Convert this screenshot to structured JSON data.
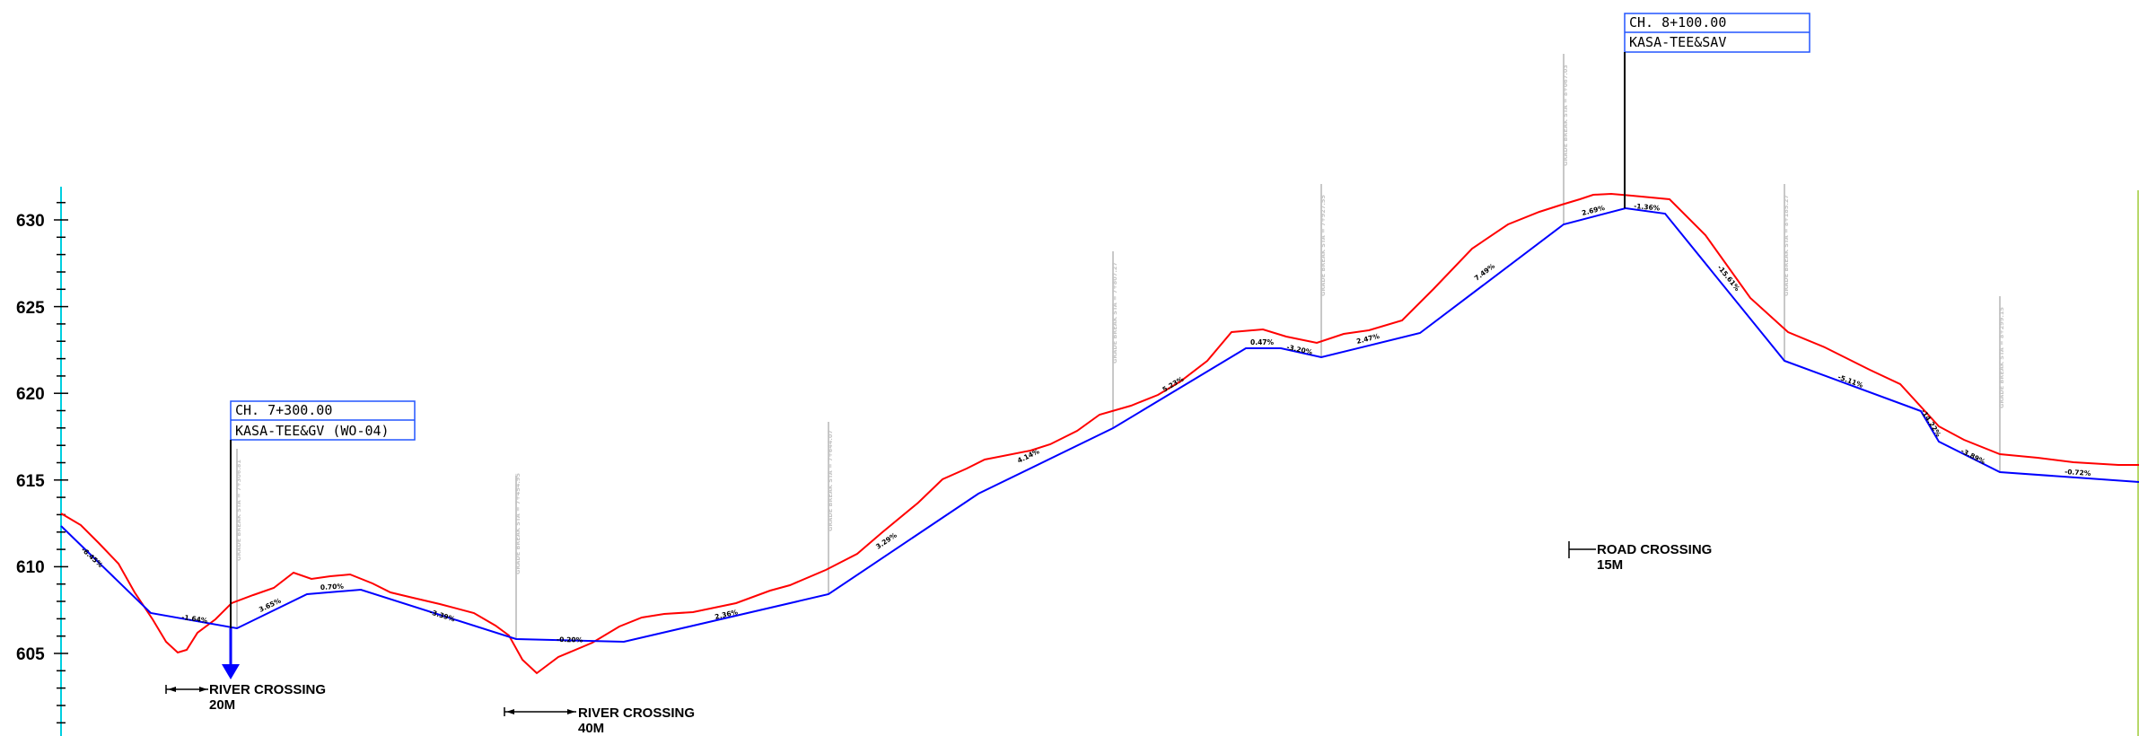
{
  "elevation_axis": {
    "ticks": [
      "630",
      "625",
      "620",
      "615",
      "610",
      "605"
    ],
    "axis_color": "#00cfe0"
  },
  "profiles": {
    "ground_color": "#ff0000",
    "pipe_color": "#0000ff"
  },
  "callouts": [
    {
      "chainage": "CH. 7+300.00",
      "description": "KASA-TEE&GV (WO-04)"
    },
    {
      "chainage": "CH. 8+100.00",
      "description": "KASA-TEE&SAV"
    }
  ],
  "crossings": [
    {
      "title": "RIVER CROSSING",
      "length": "20M"
    },
    {
      "title": "RIVER CROSSING",
      "length": "40M"
    },
    {
      "title": "ROAD CROSSING",
      "length": "15M"
    }
  ],
  "grades": [
    "-6.45%",
    "-1.64%",
    "3.65%",
    "0.70%",
    "-3.39%",
    "-0.20%",
    "2.36%",
    "3.29%",
    "4.14%",
    "5.23%",
    "0.47%",
    "-3.20%",
    "2.47%",
    "7.49%",
    "2.69%",
    "-1.36%",
    "-15.61%",
    "-5.11%",
    "-14.22%",
    "-3.89%",
    "-0.72%"
  ],
  "grade_break_notes": [
    "GRADE BREAK STA = 7+306.81",
    "GRADE BREAK STA = 7+454.95",
    "GRADE BREAK STA = 7+644.07",
    "GRADE BREAK STA = 7+807.27",
    "GRADE BREAK STA = 7+927.55",
    "GRADE BREAK STA = 8+067.03",
    "GRADE BREAK STA = 8+185.27",
    "GRADE BREAK STA = 8+299.15"
  ]
}
